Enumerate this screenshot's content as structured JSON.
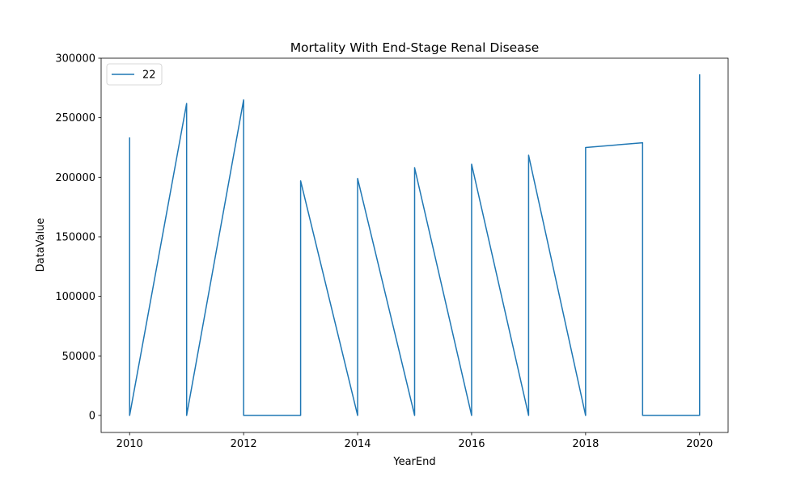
{
  "chart_data": {
    "type": "line",
    "title": "Mortality With End-Stage Renal Disease",
    "xlabel": "YearEnd",
    "ylabel": "DataValue",
    "xlim": [
      2009.5,
      2020.5
    ],
    "ylim": [
      -14300,
      300000
    ],
    "xticks": [
      2010,
      2012,
      2014,
      2016,
      2018,
      2020
    ],
    "yticks": [
      0,
      50000,
      100000,
      150000,
      200000,
      250000,
      300000
    ],
    "grid": false,
    "legend_position": "top-left",
    "series": [
      {
        "name": "22",
        "color": "#1f77b4",
        "x": [
          2010,
          2010,
          2011,
          2011,
          2012,
          2012,
          2013,
          2013,
          2014,
          2014,
          2015,
          2015,
          2016,
          2016,
          2017,
          2017,
          2018,
          2018,
          2019,
          2019,
          2020,
          2020
        ],
        "y": [
          233000,
          0,
          262000,
          0,
          265000,
          0,
          0,
          197000,
          0,
          199000,
          0,
          208000,
          0,
          211000,
          0,
          218500,
          0,
          225000,
          229000,
          0,
          0,
          286000
        ]
      }
    ]
  }
}
